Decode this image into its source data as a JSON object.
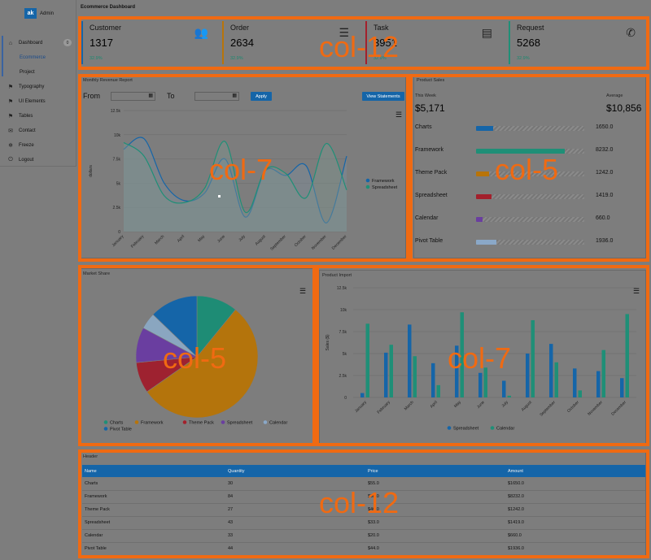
{
  "brand": {
    "logo_text": "ak",
    "name": "Admin"
  },
  "page_title": "Ecommerce Dashboard",
  "sidebar": {
    "items": [
      {
        "label": "Dashboard",
        "icon": "home-icon",
        "glyph": "⌂",
        "badge": "0"
      },
      {
        "label": "Ecommerce",
        "sub": true,
        "active": true
      },
      {
        "label": "Project",
        "sub": true
      },
      {
        "label": "Typography",
        "icon": "flag-icon",
        "glyph": "⚑"
      },
      {
        "label": "UI Elements",
        "icon": "flag-icon",
        "glyph": "⚑"
      },
      {
        "label": "Tables",
        "icon": "flag-icon",
        "glyph": "⚑"
      },
      {
        "label": "Contact",
        "icon": "envelope-icon",
        "glyph": "✉"
      },
      {
        "label": "Freeze",
        "icon": "snowflake-icon",
        "glyph": "❄"
      },
      {
        "label": "Logout",
        "icon": "power-icon",
        "glyph": "⏻"
      }
    ]
  },
  "stats": [
    {
      "label": "Customer",
      "value": "1317",
      "pct": "32.9%",
      "color": "#1565a8",
      "icon": "users-icon",
      "glyph": "👥"
    },
    {
      "label": "Order",
      "value": "2634",
      "pct": "32.9%",
      "color": "#b8740a",
      "icon": "list-icon",
      "glyph": "☰"
    },
    {
      "label": "Task",
      "value": "3951",
      "pct": "32.9%",
      "color": "#a3202c",
      "icon": "server-icon",
      "glyph": "▤"
    },
    {
      "label": "Request",
      "value": "5268",
      "pct": "32.9%",
      "color": "#1f8f77",
      "icon": "phone-icon",
      "glyph": "✆"
    }
  ],
  "layout_tags": {
    "row1": "col-12",
    "revenue": "col-7",
    "sales": "col-5",
    "market": "col-5",
    "import": "col-7",
    "table": "col-12"
  },
  "revenue": {
    "title": "Monthly Revenue Report",
    "from_label": "From",
    "to_label": "To",
    "apply_label": "Apply",
    "view_label": "View Statements"
  },
  "sales": {
    "title": "Product Sales",
    "this_week_label": "This Week",
    "this_week_value": "$5,171",
    "average_label": "Average",
    "average_value": "$10,856",
    "items": [
      {
        "name": "Charts",
        "value": "1650.0",
        "fraction": 0.16,
        "color": "#1565a8"
      },
      {
        "name": "Framework",
        "value": "8232.0",
        "fraction": 0.82,
        "color": "#1f8f77"
      },
      {
        "name": "Theme Pack",
        "value": "1242.0",
        "fraction": 0.12,
        "color": "#b8740a"
      },
      {
        "name": "Spreadsheet",
        "value": "1419.0",
        "fraction": 0.14,
        "color": "#a3202c"
      },
      {
        "name": "Calendar",
        "value": "660.0",
        "fraction": 0.06,
        "color": "#6a3ea0"
      },
      {
        "name": "Pivot Table",
        "value": "1936.0",
        "fraction": 0.19,
        "color": "#8aa8c8"
      }
    ]
  },
  "market": {
    "title": "Market Share"
  },
  "import": {
    "title": "Product Import"
  },
  "table": {
    "title": "Header",
    "columns": [
      "Name",
      "Quantity",
      "Price",
      "Amount"
    ],
    "rows": [
      [
        "Charts",
        "30",
        "$55.0",
        "$1650.0"
      ],
      [
        "Framework",
        "84",
        "$98.0",
        "$8232.0"
      ],
      [
        "Theme Pack",
        "27",
        "$46.0",
        "$1242.0"
      ],
      [
        "Spreadsheet",
        "43",
        "$33.0",
        "$1419.0"
      ],
      [
        "Calendar",
        "33",
        "$20.0",
        "$660.0"
      ],
      [
        "Pivot Table",
        "44",
        "$44.0",
        "$1936.0"
      ]
    ]
  },
  "chart_data": [
    {
      "type": "area",
      "categories": [
        "January",
        "February",
        "March",
        "April",
        "May",
        "June",
        "July",
        "August",
        "September",
        "October",
        "November",
        "December"
      ],
      "ylabel": "dollars",
      "ylim": [
        0,
        12500
      ],
      "yticks": [
        "0",
        "2.5k",
        "5k",
        "7.5k",
        "10k",
        "12.5k"
      ],
      "legend_position": "right",
      "series": [
        {
          "name": "Framework",
          "color": "#1565a8",
          "values": [
            8500,
            9600,
            5000,
            3200,
            4000,
            7500,
            1500,
            6300,
            5800,
            6800,
            900,
            7800
          ]
        },
        {
          "name": "Spreadsheet",
          "color": "#1f8f77",
          "values": [
            9200,
            7800,
            3700,
            3000,
            4500,
            9300,
            2000,
            6400,
            6000,
            3500,
            9100,
            4300
          ]
        }
      ]
    },
    {
      "type": "pie",
      "legend_position": "bottom",
      "labels": [
        "Charts",
        "Framework",
        "Theme Pack",
        "Spreadsheet",
        "Calendar",
        "Pivot Table"
      ],
      "values": [
        1650,
        8232,
        1242,
        1419,
        660,
        1936
      ],
      "colors": [
        "#1f8f77",
        "#b8740a",
        "#a3202c",
        "#6a3ea0",
        "#8aa8c8",
        "#1565a8"
      ]
    },
    {
      "type": "bar",
      "categories": [
        "January",
        "February",
        "March",
        "April",
        "May",
        "June",
        "July",
        "August",
        "September",
        "October",
        "November",
        "December"
      ],
      "ylabel": "Sales ($)",
      "ylim": [
        0,
        12500
      ],
      "yticks": [
        "0",
        "2.5k",
        "5k",
        "7.5k",
        "10k",
        "12.5k"
      ],
      "legend_position": "bottom",
      "series": [
        {
          "name": "Spreadsheet",
          "color": "#1565a8",
          "values": [
            500,
            5100,
            8300,
            3900,
            5900,
            2800,
            1900,
            5000,
            6100,
            3300,
            3000,
            2200
          ]
        },
        {
          "name": "Calendar",
          "color": "#1f8f77",
          "values": [
            8400,
            6000,
            4700,
            1400,
            9700,
            3400,
            200,
            8800,
            4000,
            800,
            5400,
            9500
          ]
        }
      ]
    }
  ]
}
